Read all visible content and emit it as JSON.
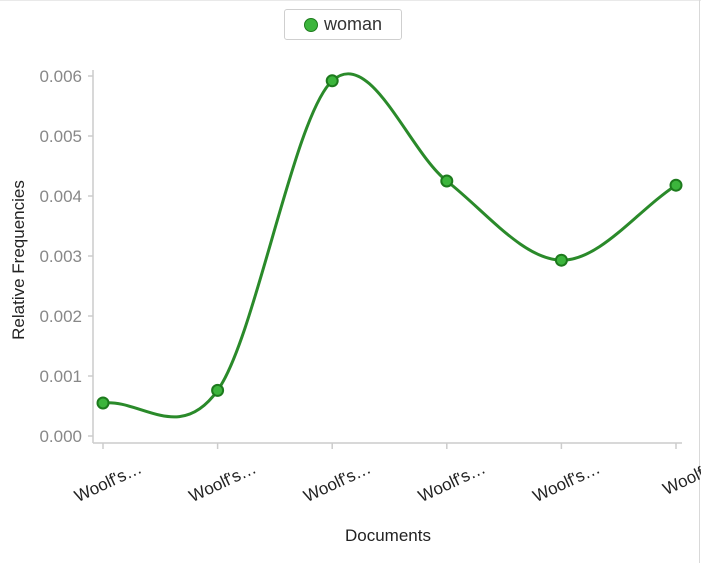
{
  "chart_data": {
    "type": "line",
    "xlabel": "Documents",
    "ylabel": "Relative Frequencies",
    "categories": [
      "Woolf's…",
      "Woolf's…",
      "Woolf's…",
      "Woolf's…",
      "Woolf's…",
      "Woolf's"
    ],
    "series": [
      {
        "name": "woman",
        "values": [
          0.00055,
          0.00076,
          0.00592,
          0.00425,
          0.00293,
          0.00418
        ]
      }
    ],
    "ylim": [
      0,
      0.006
    ],
    "yticks": [
      "0.000",
      "0.001",
      "0.002",
      "0.003",
      "0.004",
      "0.005",
      "0.006"
    ],
    "legend": "top-center",
    "grid": false,
    "colors": {
      "line": "#2a8a2a",
      "marker_fill": "#3cb53c",
      "marker_stroke": "#1d7a1d",
      "axis": "#cccccc"
    }
  }
}
